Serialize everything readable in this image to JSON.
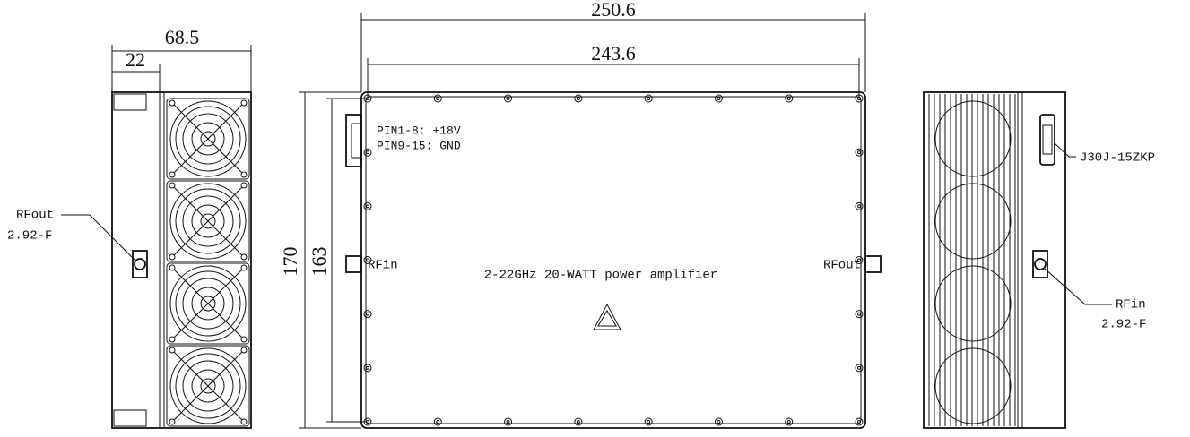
{
  "left_view": {
    "width": 68.5,
    "offset": 22,
    "connector": {
      "label": "RFout",
      "type": "2.92-F"
    }
  },
  "front_view": {
    "width_outer": 250.6,
    "width_inner": 243.6,
    "height_outer": 170,
    "height_inner": 163,
    "pin_notes": [
      "PIN1-8: +18V",
      "PIN9-15: GND"
    ],
    "input_label": "RFin",
    "output_label": "RFout",
    "title": "2-22GHz 20-WATT power amplifier"
  },
  "right_view": {
    "connector_label": "J30J-15ZKP",
    "input": {
      "label": "RFin",
      "type": "2.92-F"
    }
  }
}
